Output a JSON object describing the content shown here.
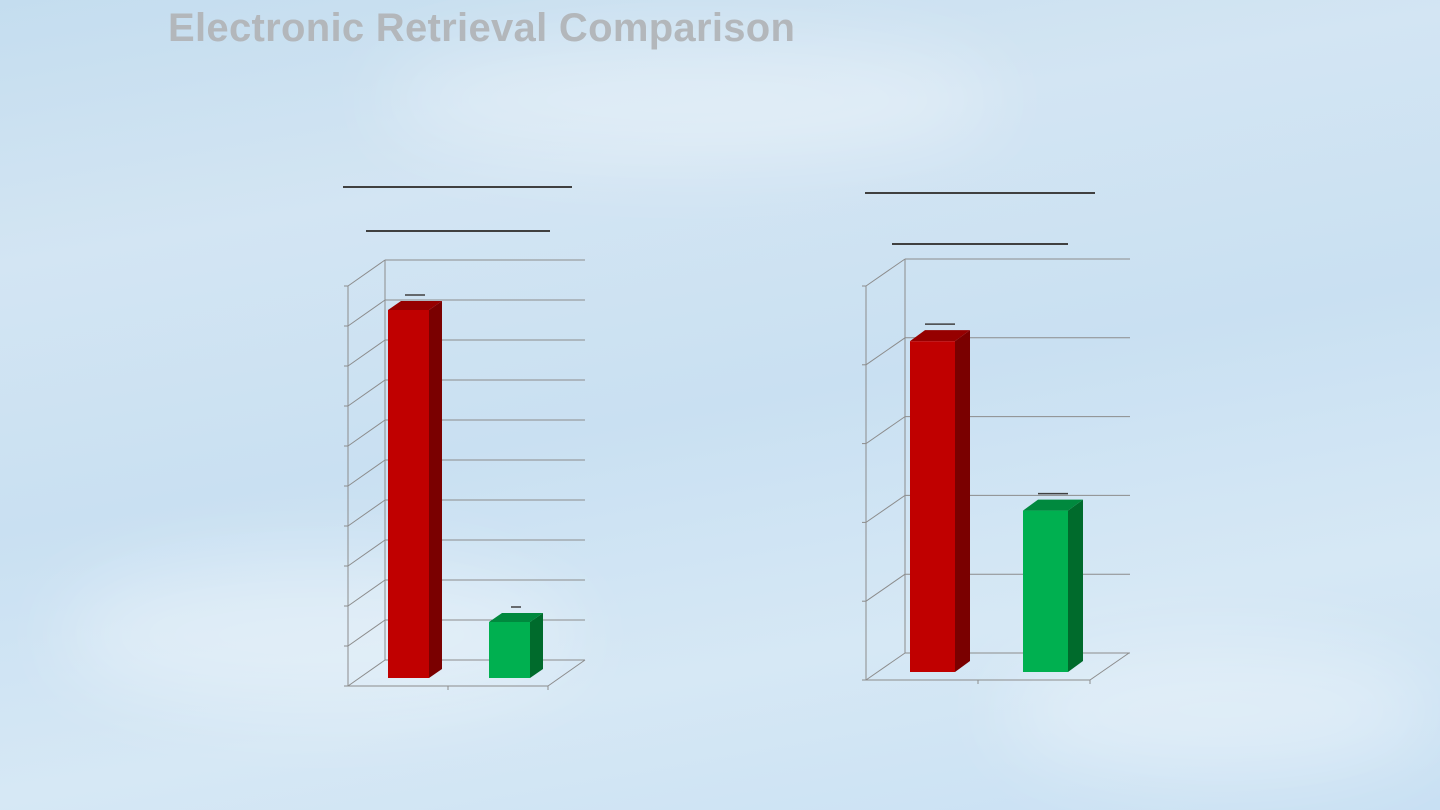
{
  "slide": {
    "title": "Electronic Retrieval Comparison"
  },
  "colors": {
    "red_face": "#c00000",
    "red_side": "#7a0000",
    "red_top": "#960000",
    "green_face": "#00b050",
    "green_side": "#006b2c",
    "green_top": "#00893e",
    "gridline": "#8c8c8c",
    "header_line": "#404040"
  },
  "chart_data": [
    {
      "type": "bar",
      "title": "",
      "categories": [
        "",
        ""
      ],
      "values": [
        9.4,
        1.6
      ],
      "ylim": [
        0,
        10
      ],
      "grid": true,
      "three_d": true
    },
    {
      "type": "bar",
      "title": "",
      "categories": [
        "",
        ""
      ],
      "values": [
        4.3,
        2.15
      ],
      "ylim": [
        0,
        5
      ],
      "grid": true,
      "three_d": true
    }
  ]
}
